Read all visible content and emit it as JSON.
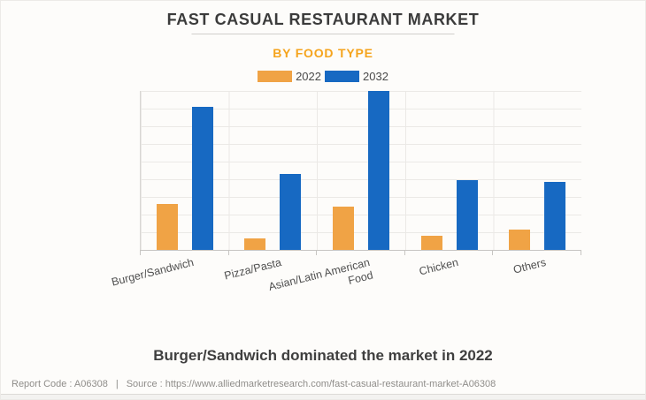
{
  "page": {
    "title": "FAST CASUAL RESTAURANT MARKET",
    "subtitle": "BY FOOD TYPE",
    "caption": "Burger/Sandwich dominated the market in 2022",
    "footer": {
      "report_code": "Report Code : A06308",
      "separator": "|",
      "source": "Source : https://www.alliedmarketresearch.com/fast-casual-restaurant-market-A06308"
    }
  },
  "colors": {
    "subtitle_orange": "#F5A41D",
    "bar_2022_orange": "#F0A345",
    "bar_2032_blue": "#1769C2",
    "title_text": "#3B3B3B",
    "axis_label_text": "#4F4F4F",
    "grid_line": "#EBE9E6",
    "footer_text": "#8F8D8A"
  },
  "chart_data": {
    "type": "bar",
    "title": "FAST CASUAL RESTAURANT MARKET",
    "subtitle": "BY FOOD TYPE",
    "categories": [
      "Burger/Sandwich",
      "Pizza/Pasta",
      "Asian/Latin American Food",
      "Chicken",
      "Others"
    ],
    "series": [
      {
        "name": "2022",
        "color": "#F0A345",
        "values": [
          29,
          7,
          27,
          9,
          13
        ]
      },
      {
        "name": "2032",
        "color": "#1769C2",
        "values": [
          90,
          48,
          100,
          44,
          43
        ]
      }
    ],
    "xlabel": "",
    "ylabel": "",
    "ylim": [
      0,
      100
    ],
    "y_axis_labels_visible": false,
    "gridlines": {
      "horizontal_intervals": 9,
      "vertical_category_separators": true
    },
    "legend_position": "top",
    "value_note": "Source chart shows no numeric y-axis labels; values are relative bar heights estimated from gridlines, scaled so the tallest bar (Asian/Latin American Food, 2032) = 100."
  }
}
